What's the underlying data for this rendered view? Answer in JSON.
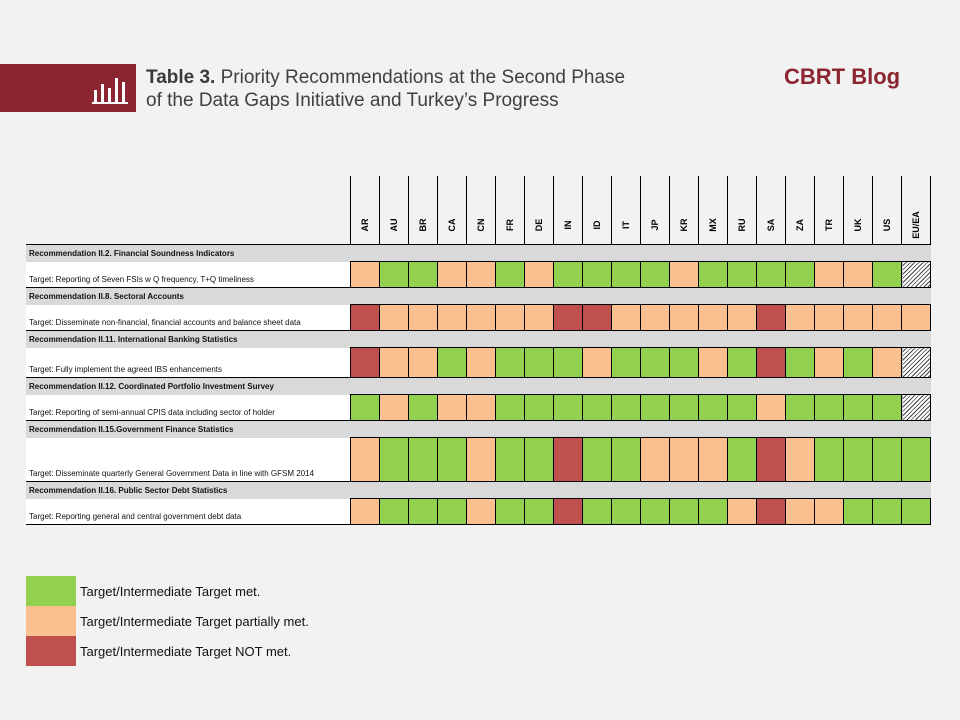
{
  "header": {
    "table_label": "Table 3.",
    "title_line1": "Priority Recommendations at the Second Phase",
    "title_line2": "of the Data Gaps Initiative and Turkey’s Progress",
    "brand": "CBRT Blog",
    "icon": "bar-chart-icon"
  },
  "colors": {
    "band": "#8b2530",
    "met": "#92d050",
    "partial": "#fac090",
    "not_met": "#c0504d",
    "header_row": "#d9d9d9"
  },
  "table": {
    "countries": [
      "AR",
      "AU",
      "BR",
      "CA",
      "CN",
      "FR",
      "DE",
      "IN",
      "ID",
      "IT",
      "JP",
      "KR",
      "MX",
      "RU",
      "SA",
      "ZA",
      "TR",
      "UK",
      "US",
      "EU/EA"
    ],
    "recommendations": [
      {
        "title": "Recommendation II.2. Financial Soundness Indicators",
        "target": "Target: Reporting of Seven FSIs w Q frequency, T+Q timeliness",
        "statuses": [
          "partial",
          "met",
          "met",
          "partial",
          "partial",
          "met",
          "partial",
          "met",
          "met",
          "met",
          "met",
          "partial",
          "met",
          "met",
          "met",
          "met",
          "partial",
          "partial",
          "met",
          "na"
        ]
      },
      {
        "title": "Recommendation II.8. Sectoral Accounts",
        "target": "Target: Disseminate non-financial, financial accounts and balance sheet data",
        "statuses": [
          "not",
          "partial",
          "partial",
          "partial",
          "partial",
          "partial",
          "partial",
          "not",
          "not",
          "partial",
          "partial",
          "partial",
          "partial",
          "partial",
          "not",
          "partial",
          "partial",
          "partial",
          "partial",
          "partial"
        ]
      },
      {
        "title": "Recommendation II.11. International Banking Statistics",
        "target": "Target: Fully implement the agreed IBS enhancements",
        "statuses": [
          "not",
          "partial",
          "partial",
          "met",
          "partial",
          "met",
          "met",
          "met",
          "partial",
          "met",
          "met",
          "met",
          "partial",
          "met",
          "not",
          "met",
          "partial",
          "met",
          "partial",
          "na"
        ]
      },
      {
        "title": "Recommendation II.12. Coordinated Portfolio Investment Survey",
        "target": "Target: Reporting of semi-annual CPIS data including sector of holder",
        "statuses": [
          "met",
          "partial",
          "met",
          "partial",
          "partial",
          "met",
          "met",
          "met",
          "met",
          "met",
          "met",
          "met",
          "met",
          "met",
          "partial",
          "met",
          "met",
          "met",
          "met",
          "na"
        ]
      },
      {
        "title": "Recommendation II.15.Government Finance Statistics",
        "target": "Target: Disseminate quarterly General Government Data in line with GFSM 2014",
        "statuses": [
          "partial",
          "met",
          "met",
          "met",
          "partial",
          "met",
          "met",
          "not",
          "met",
          "met",
          "partial",
          "partial",
          "partial",
          "met",
          "not",
          "partial",
          "met",
          "met",
          "met",
          "met"
        ]
      },
      {
        "title": "Recommendation II.16. Public Sector Debt Statistics",
        "target": "Target: Reporting general and central government debt data",
        "statuses": [
          "partial",
          "met",
          "met",
          "met",
          "partial",
          "met",
          "met",
          "not",
          "met",
          "met",
          "met",
          "met",
          "met",
          "partial",
          "not",
          "partial",
          "partial",
          "met",
          "met",
          "met"
        ]
      }
    ]
  },
  "legend": [
    {
      "status": "met",
      "label": "Target/Intermediate Target met."
    },
    {
      "status": "partial",
      "label": "Target/Intermediate Target partially met."
    },
    {
      "status": "not",
      "label": "Target/Intermediate Target NOT met."
    }
  ]
}
